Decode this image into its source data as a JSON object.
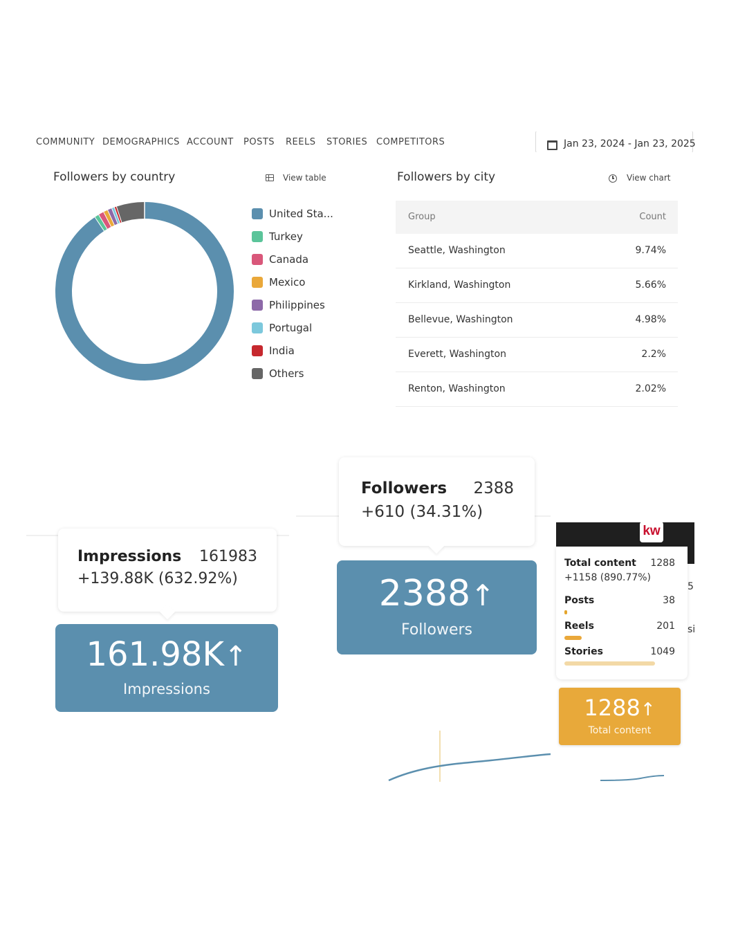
{
  "nav": {
    "items": [
      "COMMUNITY",
      "DEMOGRAPHICS",
      "ACCOUNT",
      "POSTS",
      "REELS",
      "STORIES",
      "COMPETITORS"
    ],
    "date_range": "Jan 23, 2024 - Jan 23, 2025"
  },
  "country_panel": {
    "title": "Followers by country",
    "link": "View table"
  },
  "city_panel": {
    "title": "Followers by city",
    "link": "View chart",
    "columns": [
      "Group",
      "Count"
    ],
    "rows": [
      [
        "Seattle, Washington",
        "9.74%"
      ],
      [
        "Kirkland, Washington",
        "5.66%"
      ],
      [
        "Bellevue, Washington",
        "4.98%"
      ],
      [
        "Everett, Washington",
        "2.2%"
      ],
      [
        "Renton, Washington",
        "2.02%"
      ]
    ]
  },
  "chart_data": {
    "type": "pie",
    "categories": [
      "United Sta...",
      "Turkey",
      "Canada",
      "Mexico",
      "Philippines",
      "Portugal",
      "India",
      "Others"
    ],
    "values": [
      90.6,
      0.8,
      1.0,
      0.8,
      0.8,
      0.5,
      0.4,
      5.1
    ],
    "colors": [
      "#5b8fae",
      "#5bc49a",
      "#d9577a",
      "#eaa83a",
      "#8d69a8",
      "#7cc8dc",
      "#c6282e",
      "#666666"
    ],
    "donut": true,
    "legend_position": "right"
  },
  "impressions": {
    "tip_name": "Impressions",
    "tip_value": "161983",
    "tip_change": "+139.88K (632.92%)",
    "big_value": "161.98K",
    "arrow": "↑",
    "label": "Impressions"
  },
  "followers": {
    "tip_name": "Followers",
    "tip_value": "2388",
    "tip_change": "+610 (34.31%)",
    "big_value": "2388",
    "arrow": "↑",
    "label": "Followers"
  },
  "content": {
    "logo": "kw",
    "total_name": "Total content",
    "total_value": "1288",
    "total_change": "+1158 (890.77%)",
    "items": [
      {
        "name": "Posts",
        "value": "38",
        "fraction": 0.03
      },
      {
        "name": "Reels",
        "value": "201",
        "fraction": 0.19
      },
      {
        "name": "Stories",
        "value": "1049",
        "fraction": 1.0
      }
    ],
    "big_value": "1288",
    "arrow": "↑",
    "label": "Total content",
    "bar_colors": {
      "posts": "#e5a52b",
      "reels": "#eaa83a",
      "stories": "#f3d9a6"
    },
    "fragments": [
      "5",
      "si"
    ]
  },
  "colors": {
    "accent_blue": "#5b8fae",
    "accent_orange": "#e8a93a"
  }
}
